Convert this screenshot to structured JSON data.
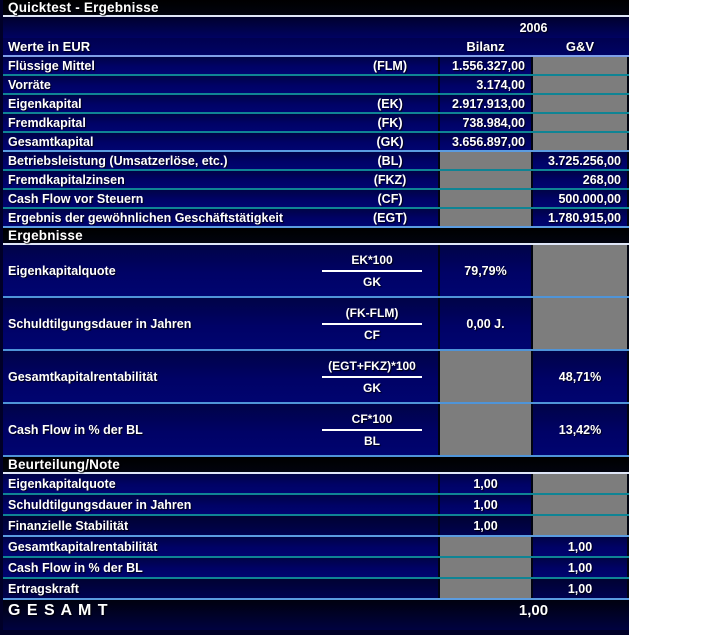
{
  "title": "Quicktest - Ergebnisse",
  "header": {
    "year": "2006",
    "label": "Werte in EUR",
    "col_bilanz": "Bilanz",
    "col_gv": "G&V"
  },
  "values_rows": [
    {
      "label": "Flüssige Mittel",
      "code": "(FLM)",
      "bilanz": "1.556.327,00"
    },
    {
      "label": "Vorräte",
      "code": "",
      "bilanz": "3.174,00"
    },
    {
      "label": "Eigenkapital",
      "code": "(EK)",
      "bilanz": "2.917.913,00"
    },
    {
      "label": "Fremdkapital",
      "code": "(FK)",
      "bilanz": "738.984,00"
    },
    {
      "label": "Gesamtkapital",
      "code": "(GK)",
      "bilanz": "3.656.897,00"
    },
    {
      "label": "Betriebsleistung (Umsatzerlöse, etc.)",
      "code": "(BL)",
      "gv": "3.725.256,00"
    },
    {
      "label": "Fremdkapitalzinsen",
      "code": "(FKZ)",
      "gv": "268,00"
    },
    {
      "label": "Cash Flow vor Steuern",
      "code": "(CF)",
      "gv": "500.000,00"
    },
    {
      "label": "Ergebnis der gewöhnlichen Geschäftstätigkeit",
      "code": "(EGT)",
      "gv": "1.780.915,00"
    }
  ],
  "ergebnisse": {
    "heading": "Ergebnisse",
    "rows": [
      {
        "label": "Eigenkapitalquote",
        "numerator": "EK*100",
        "denominator": "GK",
        "bilanz": "79,79%"
      },
      {
        "label": "Schuldtilgungsdauer in Jahren",
        "numerator": "(FK-FLM)",
        "denominator": "CF",
        "bilanz": "0,00 J."
      },
      {
        "label": "Gesamtkapitalrentabilität",
        "numerator": "(EGT+FKZ)*100",
        "denominator": "GK",
        "gv": "48,71%"
      },
      {
        "label": "Cash Flow in % der BL",
        "numerator": "CF*100",
        "denominator": "BL",
        "gv": "13,42%"
      }
    ]
  },
  "beurteilung": {
    "heading": "Beurteilung/Note",
    "rows": [
      {
        "label": "Eigenkapitalquote",
        "bilanz": "1,00"
      },
      {
        "label": "Schuldtilgungsdauer in Jahren",
        "bilanz": "1,00"
      },
      {
        "label": "Finanzielle Stabilität",
        "bilanz": "1,00"
      },
      {
        "label": "Gesamtkapitalrentabilität",
        "gv": "1,00"
      },
      {
        "label": "Cash Flow in % der BL",
        "gv": "1,00"
      },
      {
        "label": "Ertragskraft",
        "gv": "1,00"
      }
    ]
  },
  "gesamt": {
    "label": "G E S A M T",
    "value": "1,00"
  },
  "colors": {
    "row_navy": "#000266",
    "band_black": "#000000",
    "gray_cell": "#7d7d7d",
    "separator_teal": "#0f8494",
    "separator_blue": "#5b9ce0",
    "header_underline": "#dfe6f8",
    "cols_underline": "#7f9fe8",
    "page_margin": "#ffffff"
  }
}
